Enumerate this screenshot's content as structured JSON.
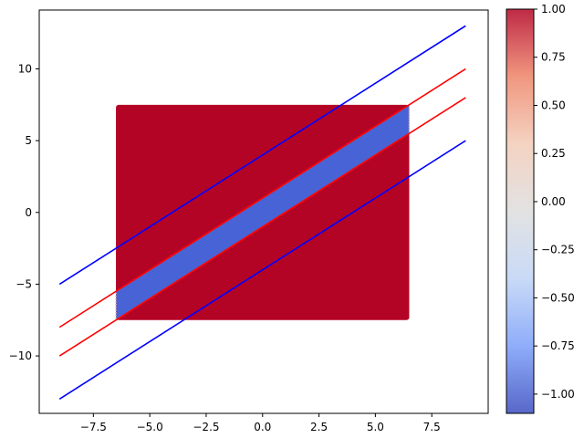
{
  "chart_data": {
    "type": "scatter",
    "title": "",
    "xlabel": "",
    "ylabel": "",
    "xlim": [
      -9.9,
      10.0
    ],
    "ylim": [
      -14.0,
      14.1
    ],
    "x_ticks": [
      -7.5,
      -5.0,
      -2.5,
      0.0,
      2.5,
      5.0,
      7.5
    ],
    "x_tick_labels": [
      "−7.5",
      "−5.0",
      "−2.5",
      "0.0",
      "2.5",
      "5.0",
      "7.5"
    ],
    "y_ticks": [
      -10,
      -5,
      0,
      5,
      10
    ],
    "y_tick_labels": [
      "−10",
      "−5",
      "0",
      "5",
      "10"
    ],
    "grid": false,
    "scatter_region": {
      "x_range": [
        -6.5,
        6.5
      ],
      "y_range": [
        -7.5,
        7.5
      ],
      "band": {
        "slope": 1,
        "intercept_low": -1,
        "intercept_high": 1,
        "value": -1
      },
      "outside_value": 1,
      "colors": {
        "positive": "#b40426",
        "negative": "#4763d6",
        "edge": "#f2b29a"
      }
    },
    "series": [
      {
        "kind": "line",
        "color": "#0000ff",
        "x": [
          -9,
          9
        ],
        "y": [
          -5,
          13
        ]
      },
      {
        "kind": "line",
        "color": "#ff0000",
        "x": [
          -9,
          9
        ],
        "y": [
          -8,
          10
        ]
      },
      {
        "kind": "line",
        "color": "#ff0000",
        "x": [
          -9,
          9
        ],
        "y": [
          -10,
          8
        ]
      },
      {
        "kind": "line",
        "color": "#0000ff",
        "x": [
          -9,
          9
        ],
        "y": [
          -13,
          5
        ]
      }
    ],
    "colorbar": {
      "range": [
        -1.1,
        1.0
      ],
      "ticks": [
        1.0,
        0.75,
        0.5,
        0.25,
        0.0,
        -0.25,
        -0.5,
        -0.75,
        -1.0
      ],
      "tick_labels": [
        "1.00",
        "0.75",
        "0.50",
        "0.25",
        "0.00",
        "−0.25",
        "−0.50",
        "−0.75",
        "−1.00"
      ],
      "colormap": "coolwarm",
      "stops": [
        "#3b4cc0",
        "#7b9ff9",
        "#c0d4f5",
        "#dddddd",
        "#f2cbb7",
        "#ee8468",
        "#b40426"
      ]
    }
  }
}
